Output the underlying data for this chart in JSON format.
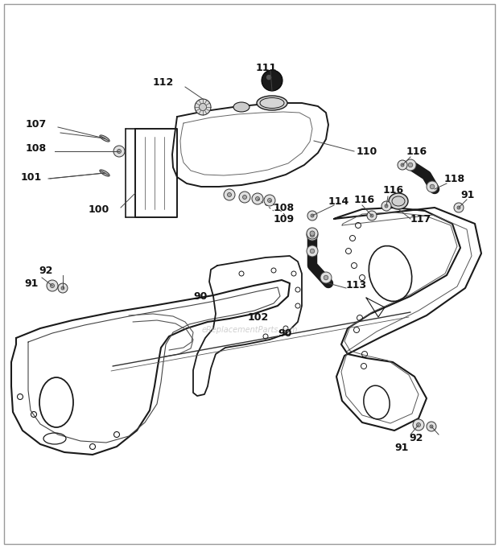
{
  "bg_color": "#ffffff",
  "line_color": "#1a1a1a",
  "watermark": "eReplacementParts.com",
  "border_color": "#999999",
  "label_fontsize": 8.5,
  "label_color": "#111111"
}
